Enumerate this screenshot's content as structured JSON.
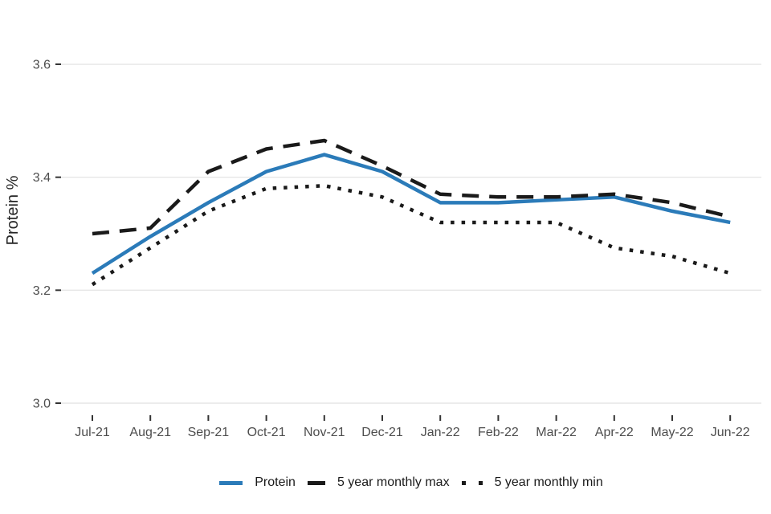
{
  "chart_data": {
    "type": "line",
    "title": "",
    "xlabel": "",
    "ylabel": "Protein %",
    "categories": [
      "Jul-21",
      "Aug-21",
      "Sep-21",
      "Oct-21",
      "Nov-21",
      "Dec-21",
      "Jan-22",
      "Feb-22",
      "Mar-22",
      "Apr-22",
      "May-22",
      "Jun-22"
    ],
    "y_ticks": [
      3.0,
      3.2,
      3.4,
      3.6
    ],
    "y_tick_labels": [
      "3.0",
      "3.2",
      "3.4",
      "3.6"
    ],
    "ylim": [
      2.98,
      3.69
    ],
    "grid": "horizontal-gridlines-only",
    "legend_position": "bottom-center",
    "series": [
      {
        "name": "Protein",
        "line_style": "solid",
        "color": "#2b7bb9",
        "values": [
          3.23,
          3.295,
          3.355,
          3.41,
          3.44,
          3.41,
          3.355,
          3.355,
          3.36,
          3.365,
          3.34,
          3.32
        ]
      },
      {
        "name": "5 year monthly max",
        "line_style": "dashed",
        "color": "#1a1a1a",
        "values": [
          3.3,
          3.31,
          3.41,
          3.45,
          3.465,
          3.42,
          3.37,
          3.365,
          3.365,
          3.37,
          3.355,
          3.33
        ]
      },
      {
        "name": "5 year monthly min",
        "line_style": "dotted",
        "color": "#1a1a1a",
        "values": [
          3.21,
          3.275,
          3.34,
          3.38,
          3.385,
          3.365,
          3.32,
          3.32,
          3.32,
          3.275,
          3.26,
          3.23
        ]
      }
    ]
  },
  "colors": {
    "background": "#ffffff",
    "gridline": "#e6e6e6",
    "tick_mark": "#333333",
    "tick_label": "#4d4d4d",
    "axis_title": "#262626",
    "legend_text": "#1a1a1a",
    "protein_blue": "#2b7bb9",
    "extreme_black": "#1a1a1a"
  }
}
